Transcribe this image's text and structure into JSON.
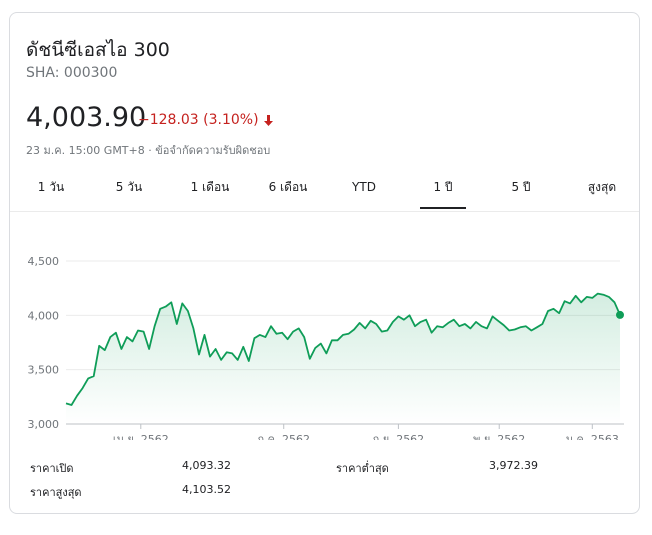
{
  "header": {
    "title": "ดัชนีซีเอสไอ 300",
    "ticker": "SHA: 000300",
    "price": "4,003.90",
    "change": "−128.03 (3.10%)",
    "meta": "23 ม.ค. 15:00 GMT+8 · ข้อจำกัดความรับผิดชอบ",
    "change_color": "#c5221f"
  },
  "tabs": [
    {
      "label": "1 วัน",
      "active": false
    },
    {
      "label": "5 วัน",
      "active": false
    },
    {
      "label": "1 เดือน",
      "active": false
    },
    {
      "label": "6 เดือน",
      "active": false
    },
    {
      "label": "YTD",
      "active": false
    },
    {
      "label": "1 ปี",
      "active": true
    },
    {
      "label": "5 ปี",
      "active": false
    },
    {
      "label": "สูงสุด",
      "active": false
    }
  ],
  "stats": {
    "open_label": "ราคาเปิด",
    "open_value": "4,093.32",
    "low_label": "ราคาต่ำสุด",
    "low_value": "3,972.39",
    "high_label": "ราคาสูงสุด",
    "high_value": "4,103.52"
  },
  "chart_data": {
    "type": "area",
    "ylim": [
      3000,
      4500
    ],
    "yticks": [
      3000,
      3500,
      4000,
      4500
    ],
    "ytick_labels": [
      "3,000",
      "3,500",
      "4,000",
      "4,500"
    ],
    "xlabels": [
      "เม.ย. 2562",
      "ก.ค. 2562",
      "ก.ย. 2562",
      "พ.ย. 2562",
      "ม.ค. 2563"
    ],
    "xlabel_positions": [
      0.135,
      0.393,
      0.6,
      0.782,
      0.95
    ],
    "line_color": "#0f9d58",
    "grid": true,
    "x": [
      0,
      0.01,
      0.02,
      0.03,
      0.04,
      0.05,
      0.06,
      0.07,
      0.08,
      0.09,
      0.1,
      0.11,
      0.12,
      0.13,
      0.14,
      0.15,
      0.16,
      0.17,
      0.18,
      0.19,
      0.2,
      0.21,
      0.22,
      0.23,
      0.24,
      0.25,
      0.26,
      0.27,
      0.28,
      0.29,
      0.3,
      0.31,
      0.32,
      0.33,
      0.34,
      0.35,
      0.36,
      0.37,
      0.38,
      0.39,
      0.4,
      0.41,
      0.42,
      0.43,
      0.44,
      0.45,
      0.46,
      0.47,
      0.48,
      0.49,
      0.5,
      0.51,
      0.52,
      0.53,
      0.54,
      0.55,
      0.56,
      0.57,
      0.58,
      0.59,
      0.6,
      0.61,
      0.62,
      0.63,
      0.64,
      0.65,
      0.66,
      0.67,
      0.68,
      0.69,
      0.7,
      0.71,
      0.72,
      0.73,
      0.74,
      0.75,
      0.76,
      0.77,
      0.78,
      0.79,
      0.8,
      0.81,
      0.82,
      0.83,
      0.84,
      0.85,
      0.86,
      0.87,
      0.88,
      0.89,
      0.9,
      0.91,
      0.92,
      0.93,
      0.94,
      0.95,
      0.96,
      0.97,
      0.98,
      0.99,
      1.0
    ],
    "values": [
      3190,
      3175,
      3260,
      3330,
      3420,
      3440,
      3720,
      3680,
      3800,
      3840,
      3690,
      3800,
      3760,
      3860,
      3850,
      3690,
      3900,
      4060,
      4080,
      4120,
      3920,
      4110,
      4040,
      3880,
      3640,
      3820,
      3620,
      3690,
      3590,
      3660,
      3650,
      3590,
      3710,
      3580,
      3790,
      3820,
      3800,
      3900,
      3830,
      3840,
      3780,
      3850,
      3880,
      3800,
      3600,
      3700,
      3740,
      3650,
      3770,
      3770,
      3820,
      3830,
      3870,
      3930,
      3880,
      3950,
      3920,
      3850,
      3860,
      3940,
      3990,
      3960,
      4000,
      3900,
      3940,
      3960,
      3840,
      3900,
      3890,
      3930,
      3960,
      3900,
      3920,
      3880,
      3940,
      3900,
      3880,
      3990,
      3950,
      3910,
      3860,
      3870,
      3890,
      3900,
      3860,
      3890,
      3920,
      4040,
      4060,
      4020,
      4130,
      4110,
      4180,
      4120,
      4170,
      4160,
      4200,
      4190,
      4170,
      4120,
      4004
    ]
  }
}
